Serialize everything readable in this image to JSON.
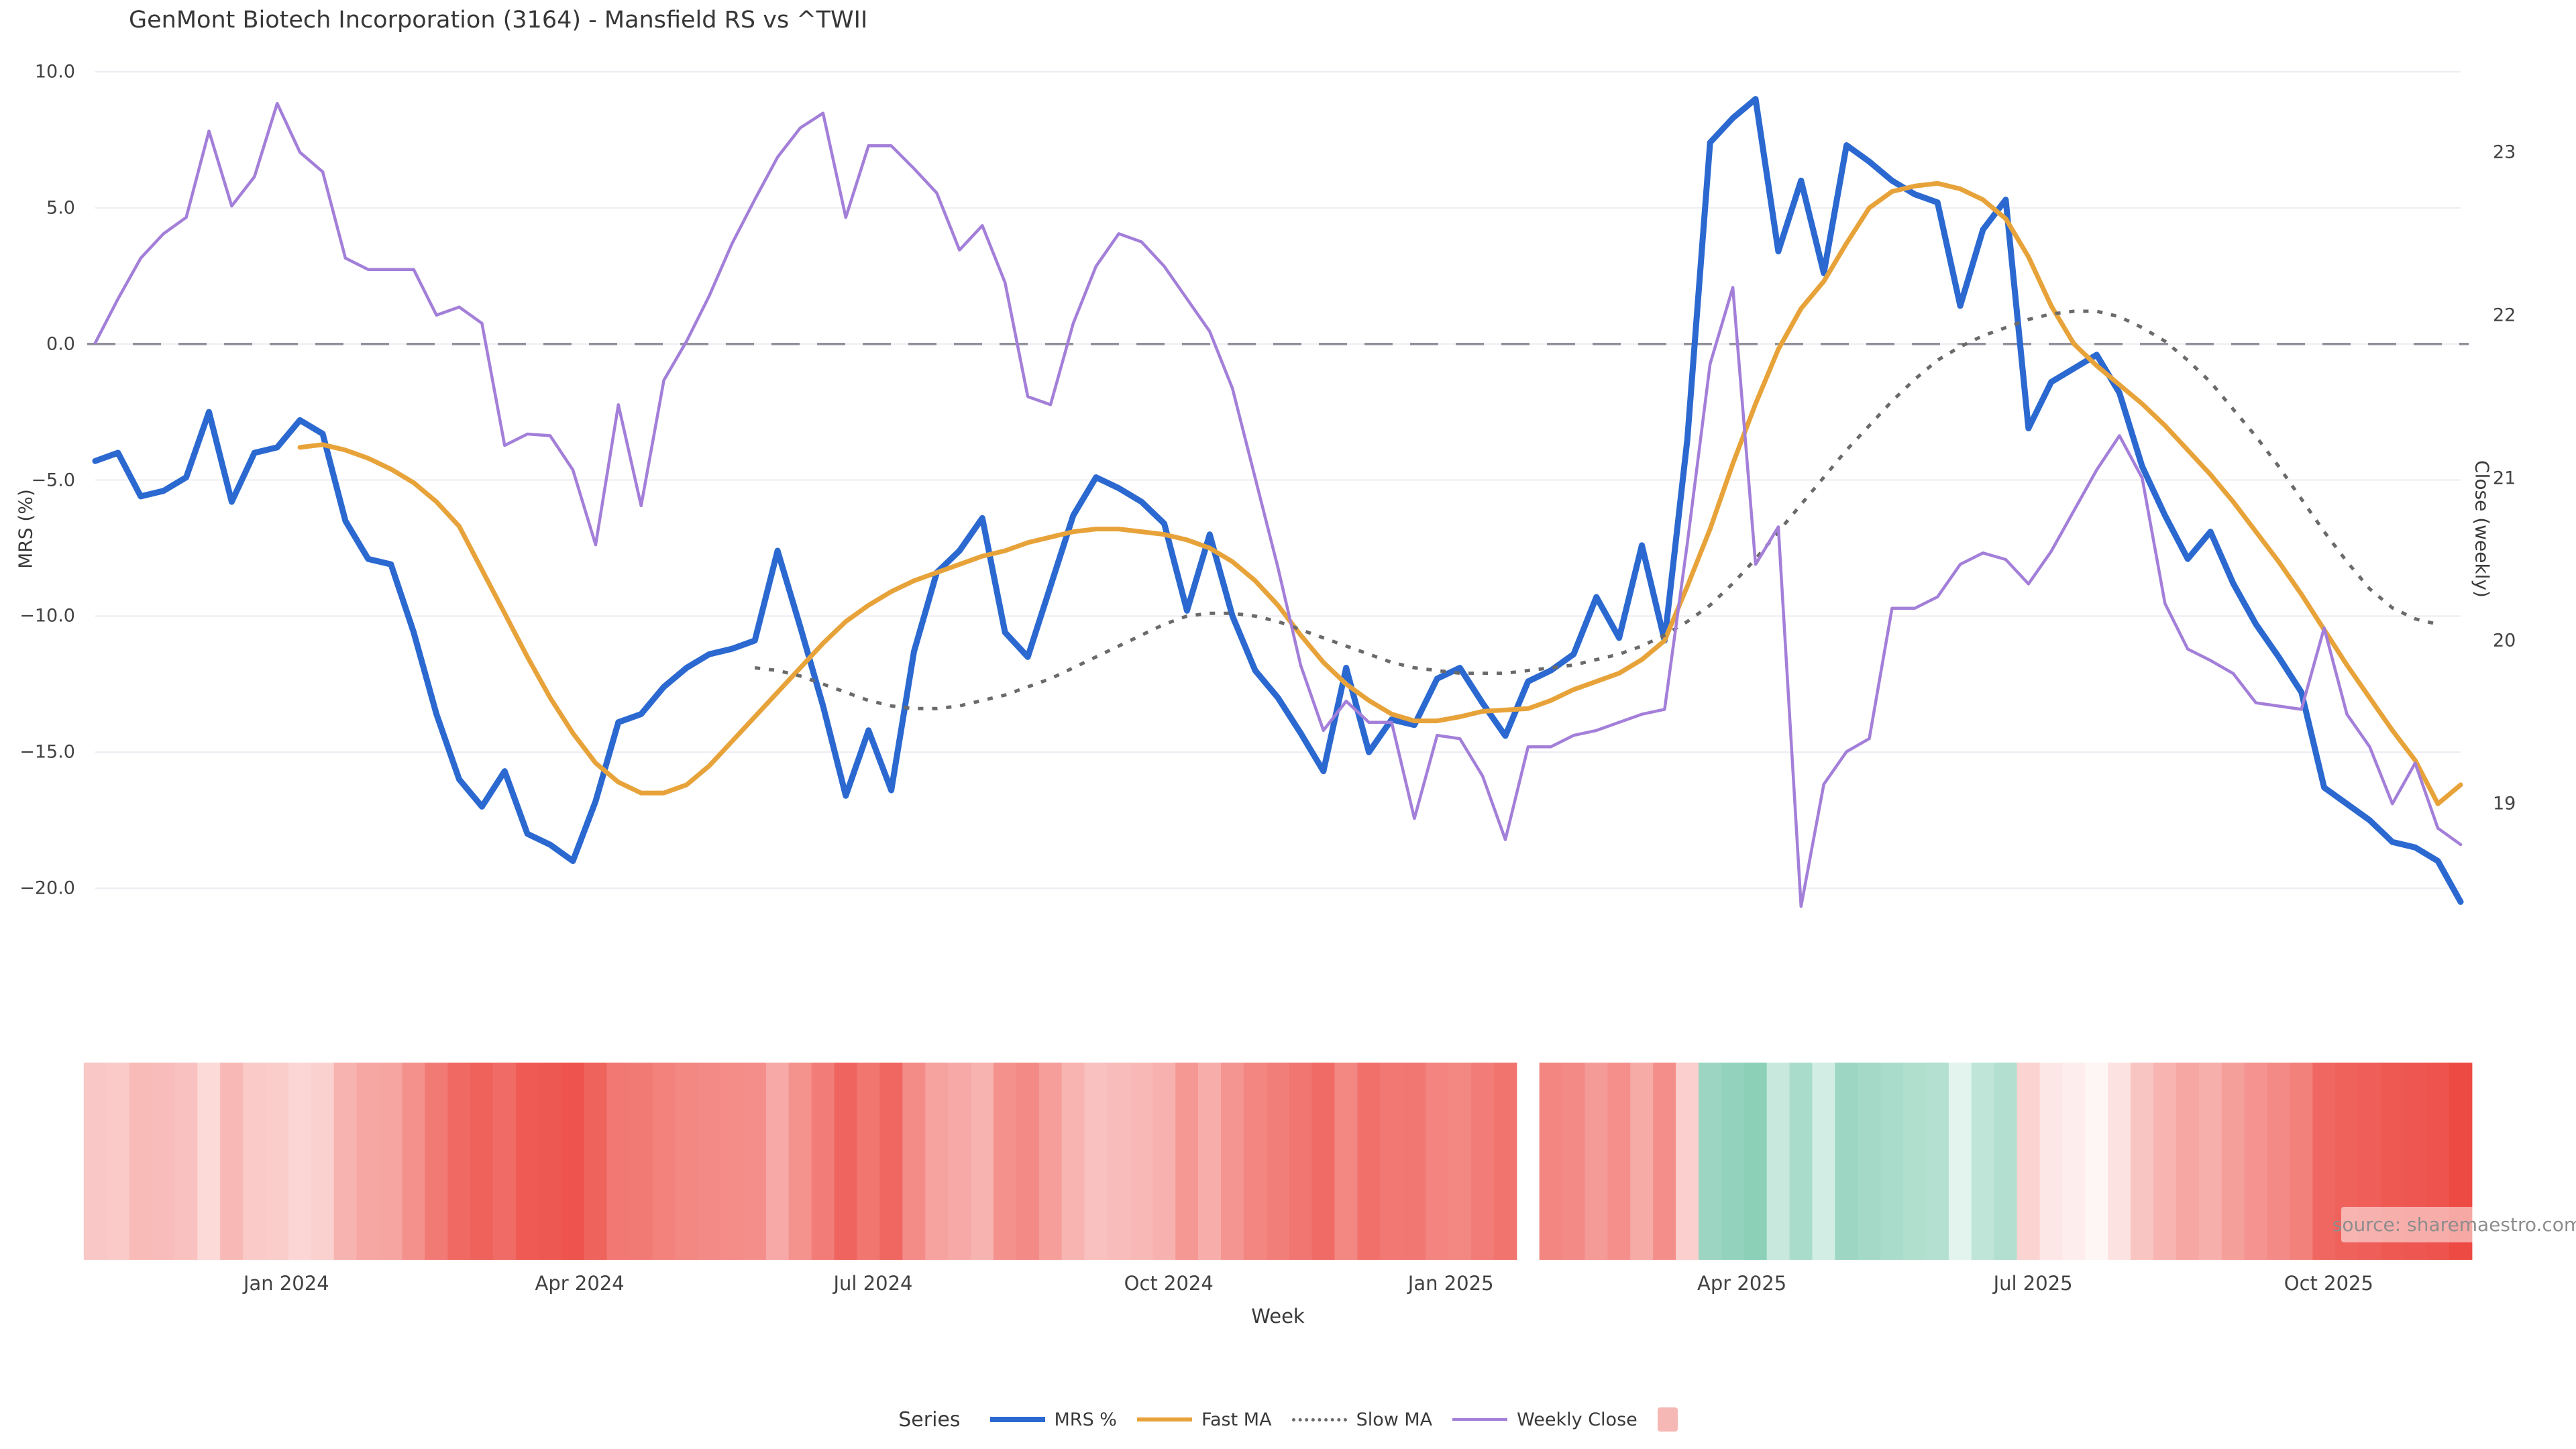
{
  "title": "GenMont Biotech Incorporation (3164) - Mansfield RS vs ^TWII",
  "source": "source: sharemaestro.com",
  "legend": {
    "title": "Series",
    "items": [
      {
        "label": "MRS %",
        "swatch": "line",
        "color": "#2b69d1",
        "thickness": 8
      },
      {
        "label": "Fast MA",
        "swatch": "line",
        "color": "#e7a33a",
        "thickness": 6
      },
      {
        "label": "Slow MA",
        "swatch": "dotted",
        "color": "#6a6a6a",
        "thickness": 5
      },
      {
        "label": "Weekly Close",
        "swatch": "line",
        "color": "#a37fd9",
        "thickness": 4
      },
      {
        "label": "",
        "swatch": "square",
        "color": "#f6b8b4"
      }
    ]
  },
  "chart_data": {
    "type": "line",
    "title": "GenMont Biotech Incorporation (3164) - Mansfield RS vs ^TWII",
    "x_unit": "week",
    "n_points": 105,
    "xlabel": "Week",
    "x_ticks": [
      {
        "label": "Jan 2024",
        "week": 8.4
      },
      {
        "label": "Apr 2024",
        "week": 21.3
      },
      {
        "label": "Jul 2024",
        "week": 34.2
      },
      {
        "label": "Oct 2024",
        "week": 47.2
      },
      {
        "label": "Jan 2025",
        "week": 59.6
      },
      {
        "label": "Apr 2025",
        "week": 72.4
      },
      {
        "label": "Jul 2025",
        "week": 85.2
      },
      {
        "label": "Oct 2025",
        "week": 98.2
      }
    ],
    "left_axis": {
      "label": "MRS (%)",
      "ticks": [
        "10.0",
        "5.0",
        "0.0",
        "−5.0",
        "−10.0",
        "−15.0",
        "−20.0"
      ],
      "tick_values": [
        10,
        5,
        0,
        -5,
        -10,
        -15,
        -20
      ]
    },
    "right_axis": {
      "label": "Close (weekly)",
      "ticks": [
        "23",
        "22",
        "21",
        "20",
        "19"
      ],
      "tick_values": [
        23,
        22,
        21,
        20,
        19
      ]
    },
    "zero_line": {
      "axis": "left",
      "value": 0,
      "style": "dashed",
      "color": "#90909b"
    },
    "grid": true,
    "legend_position": "bottom",
    "series": [
      {
        "name": "MRS %",
        "axis": "left",
        "color": "#2b69d1",
        "style": "solid",
        "width": 9,
        "values": [
          -4.3,
          -4.0,
          -5.6,
          -5.4,
          -4.9,
          -2.5,
          -5.8,
          -4.0,
          -3.8,
          -2.8,
          -3.3,
          -6.5,
          -7.9,
          -8.1,
          -10.6,
          -13.6,
          -16.0,
          -17.0,
          -15.7,
          -18.0,
          -18.4,
          -19.0,
          -16.8,
          -13.9,
          -13.6,
          -12.6,
          -11.9,
          -11.4,
          -11.2,
          -10.9,
          -7.6,
          -10.4,
          -13.3,
          -16.6,
          -14.2,
          -16.4,
          -11.3,
          -8.4,
          -7.6,
          -6.4,
          -10.6,
          -11.5,
          -8.9,
          -6.3,
          -4.9,
          -5.3,
          -5.8,
          -6.6,
          -9.8,
          -7.0,
          -10.0,
          -12.0,
          -13.0,
          -14.3,
          -15.7,
          -11.9,
          -15.0,
          -13.8,
          -14.0,
          -12.3,
          -11.9,
          -13.2,
          -14.4,
          -12.4,
          -12.0,
          -11.4,
          -9.3,
          -10.8,
          -7.4,
          -10.9,
          -3.5,
          7.4,
          8.3,
          9.0,
          3.4,
          6.0,
          2.6,
          7.3,
          6.7,
          6.0,
          5.5,
          5.2,
          1.4,
          4.2,
          5.3,
          -3.1,
          -1.4,
          -0.9,
          -0.4,
          -1.8,
          -4.5,
          -6.3,
          -7.9,
          -6.9,
          -8.8,
          -10.3,
          -11.5,
          -12.8,
          -16.3,
          -16.9,
          -17.5,
          -18.3,
          -18.5,
          -19.0,
          -20.5
        ]
      },
      {
        "name": "Fast MA",
        "axis": "left",
        "color": "#e7a33a",
        "style": "solid",
        "width": 7,
        "values": [
          null,
          null,
          null,
          null,
          null,
          null,
          null,
          null,
          null,
          -3.8,
          -3.7,
          -3.9,
          -4.2,
          -4.6,
          -5.1,
          -5.8,
          -6.7,
          -8.3,
          -9.9,
          -11.5,
          -13.0,
          -14.3,
          -15.4,
          -16.1,
          -16.5,
          -16.5,
          -16.2,
          -15.5,
          -14.6,
          -13.7,
          -12.8,
          -11.9,
          -11.0,
          -10.2,
          -9.6,
          -9.1,
          -8.7,
          -8.4,
          -8.1,
          -7.8,
          -7.6,
          -7.3,
          -7.1,
          -6.9,
          -6.8,
          -6.8,
          -6.9,
          -7.0,
          -7.2,
          -7.5,
          -8.0,
          -8.7,
          -9.6,
          -10.7,
          -11.7,
          -12.5,
          -13.1,
          -13.6,
          -13.85,
          -13.85,
          -13.7,
          -13.5,
          -13.45,
          -13.4,
          -13.1,
          -12.7,
          -12.4,
          -12.1,
          -11.6,
          -10.9,
          -8.9,
          -6.8,
          -4.4,
          -2.2,
          -0.2,
          1.3,
          2.3,
          3.7,
          5.0,
          5.6,
          5.8,
          5.9,
          5.7,
          5.3,
          4.6,
          3.2,
          1.4,
          0.0,
          -0.8,
          -1.5,
          -2.2,
          -3.0,
          -3.9,
          -4.8,
          -5.8,
          -6.9,
          -8.0,
          -9.2,
          -10.5,
          -11.8,
          -13.0,
          -14.2,
          -15.3,
          -16.9,
          -16.2
        ]
      },
      {
        "name": "Slow MA",
        "axis": "left",
        "color": "#6a6a6a",
        "style": "dotted",
        "width": 5,
        "values": [
          null,
          null,
          null,
          null,
          null,
          null,
          null,
          null,
          null,
          null,
          null,
          null,
          null,
          null,
          null,
          null,
          null,
          null,
          null,
          null,
          null,
          null,
          null,
          null,
          null,
          null,
          null,
          null,
          null,
          -11.9,
          -12.0,
          -12.2,
          -12.5,
          -12.8,
          -13.1,
          -13.3,
          -13.4,
          -13.4,
          -13.3,
          -13.1,
          -12.9,
          -12.6,
          -12.3,
          -11.9,
          -11.5,
          -11.1,
          -10.7,
          -10.3,
          -10.0,
          -9.9,
          -9.9,
          -10.0,
          -10.2,
          -10.5,
          -10.8,
          -11.1,
          -11.4,
          -11.7,
          -11.9,
          -12.0,
          -12.1,
          -12.1,
          -12.1,
          -12.0,
          -11.9,
          -11.8,
          -11.6,
          -11.4,
          -11.1,
          -10.7,
          -10.2,
          -9.6,
          -8.8,
          -7.9,
          -6.9,
          -5.9,
          -4.9,
          -3.9,
          -3.0,
          -2.1,
          -1.3,
          -0.6,
          -0.1,
          0.3,
          0.6,
          0.9,
          1.1,
          1.2,
          1.2,
          1.0,
          0.6,
          0.1,
          -0.6,
          -1.4,
          -2.4,
          -3.4,
          -4.5,
          -5.7,
          -6.9,
          -8.0,
          -9.0,
          -9.7,
          -10.1,
          -10.3,
          null
        ]
      },
      {
        "name": "Weekly Close",
        "axis": "right",
        "color": "#a37fd9",
        "style": "solid",
        "width": 4.5,
        "values": [
          21.83,
          22.1,
          22.35,
          22.5,
          22.6,
          23.13,
          22.67,
          22.85,
          23.3,
          23.0,
          22.88,
          22.35,
          22.28,
          22.28,
          22.28,
          22.0,
          22.05,
          21.95,
          21.2,
          21.27,
          21.26,
          21.05,
          20.59,
          21.45,
          20.83,
          21.6,
          21.84,
          22.12,
          22.44,
          22.71,
          22.97,
          23.15,
          23.24,
          22.6,
          23.04,
          23.04,
          22.9,
          22.75,
          22.4,
          22.55,
          22.2,
          21.5,
          21.45,
          21.95,
          22.3,
          22.5,
          22.45,
          22.3,
          22.1,
          21.9,
          21.55,
          21.0,
          20.45,
          19.85,
          19.45,
          19.63,
          19.5,
          19.5,
          18.91,
          19.42,
          19.4,
          19.17,
          18.78,
          19.35,
          19.35,
          19.42,
          19.45,
          19.5,
          19.55,
          19.58,
          20.6,
          21.7,
          22.17,
          20.47,
          20.7,
          18.37,
          19.12,
          19.32,
          19.4,
          20.2,
          20.2,
          20.27,
          20.47,
          20.54,
          20.5,
          20.35,
          20.55,
          20.8,
          21.05,
          21.26,
          21.0,
          20.23,
          19.95,
          19.88,
          19.8,
          19.62,
          19.6,
          19.58,
          20.08,
          19.55,
          19.35,
          19.0,
          19.25,
          18.85,
          18.75
        ]
      }
    ],
    "heatmap": {
      "derived_from": "MRS %",
      "missing_weeks": [
        63
      ],
      "negative_color": "#ed4a43",
      "positive_color": "#2aa87c",
      "neutral_color": "#ffffff",
      "scale_abs_max": 20.5,
      "gamma": 0.75
    }
  }
}
